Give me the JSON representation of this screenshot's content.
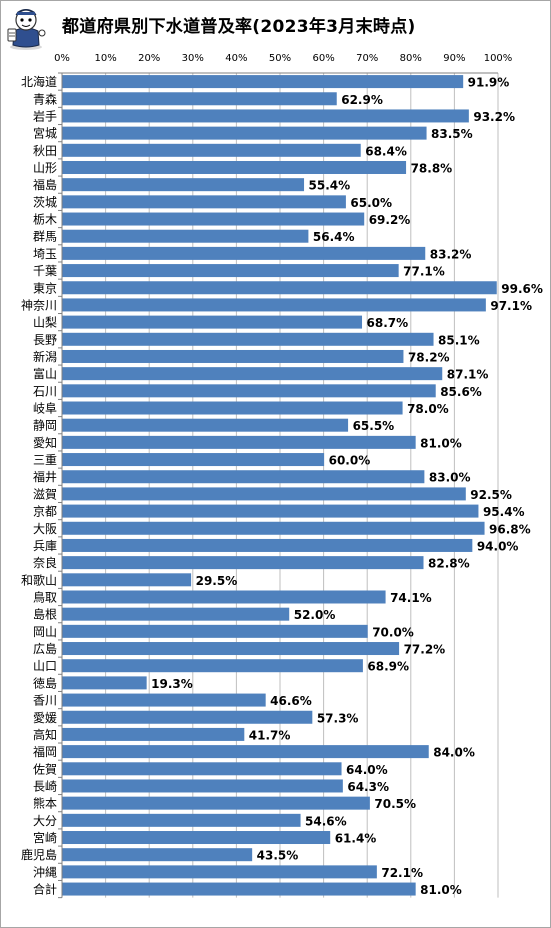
{
  "chart_data": {
    "type": "bar",
    "orientation": "horizontal",
    "title": "都道府県別下水道普及率(2023年3月末時点)",
    "xlim": [
      0,
      100
    ],
    "ticks": [
      "0%",
      "10%",
      "20%",
      "30%",
      "40%",
      "50%",
      "60%",
      "70%",
      "80%",
      "90%",
      "100%"
    ],
    "grid": true,
    "bar_color": "#4f81bd",
    "categories": [
      "北海道",
      "青森",
      "岩手",
      "宮城",
      "秋田",
      "山形",
      "福島",
      "茨城",
      "栃木",
      "群馬",
      "埼玉",
      "千葉",
      "東京",
      "神奈川",
      "山梨",
      "長野",
      "新潟",
      "富山",
      "石川",
      "岐阜",
      "静岡",
      "愛知",
      "三重",
      "福井",
      "滋賀",
      "京都",
      "大阪",
      "兵庫",
      "奈良",
      "和歌山",
      "鳥取",
      "島根",
      "岡山",
      "広島",
      "山口",
      "徳島",
      "香川",
      "愛媛",
      "高知",
      "福岡",
      "佐賀",
      "長崎",
      "熊本",
      "大分",
      "宮崎",
      "鹿児島",
      "沖縄",
      "合計"
    ],
    "values": [
      91.9,
      62.9,
      93.2,
      83.5,
      68.4,
      78.8,
      55.4,
      65.0,
      69.2,
      56.4,
      83.2,
      77.1,
      99.6,
      97.1,
      68.7,
      85.1,
      78.2,
      87.1,
      85.6,
      78.0,
      65.5,
      81.0,
      60.0,
      83.0,
      92.5,
      95.4,
      96.8,
      94.0,
      82.8,
      29.5,
      74.1,
      52.0,
      70.0,
      77.2,
      68.9,
      19.3,
      46.6,
      57.3,
      41.7,
      84.0,
      64.0,
      64.3,
      70.5,
      54.6,
      61.4,
      43.5,
      72.1,
      81.0
    ],
    "value_labels": [
      "91.9%",
      "62.9%",
      "93.2%",
      "83.5%",
      "68.4%",
      "78.8%",
      "55.4%",
      "65.0%",
      "69.2%",
      "56.4%",
      "83.2%",
      "77.1%",
      "99.6%",
      "97.1%",
      "68.7%",
      "85.1%",
      "78.2%",
      "87.1%",
      "85.6%",
      "78.0%",
      "65.5%",
      "81.0%",
      "60.0%",
      "83.0%",
      "92.5%",
      "95.4%",
      "96.8%",
      "94.0%",
      "82.8%",
      "29.5%",
      "74.1%",
      "52.0%",
      "70.0%",
      "77.2%",
      "68.9%",
      "19.3%",
      "46.6%",
      "57.3%",
      "41.7%",
      "84.0%",
      "64.0%",
      "64.3%",
      "70.5%",
      "54.6%",
      "61.4%",
      "43.5%",
      "72.1%",
      "81.0%"
    ]
  },
  "mascot_icon": "mascot-character-icon"
}
